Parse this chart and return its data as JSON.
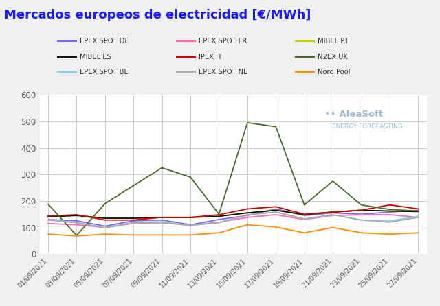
{
  "title": "Mercados europeos de electricidad [€/MWh]",
  "title_color": "#1a1aff",
  "background_color": "#f0f0f0",
  "plot_background": "#ffffff",
  "xlabels": [
    "01/09/2021",
    "03/09/2021",
    "05/09/2021",
    "07/09/2021",
    "09/09/2021",
    "11/09/2021",
    "13/09/2021",
    "15/09/2021",
    "17/09/2021",
    "19/09/2021",
    "21/09/2021",
    "23/09/2021",
    "25/09/2021",
    "27/09/2021"
  ],
  "ylim": [
    0,
    600
  ],
  "yticks": [
    0,
    100,
    200,
    300,
    400,
    500,
    600
  ],
  "series": [
    {
      "label": "EPEX SPOT DE",
      "color": "#7b68ee",
      "values": [
        130,
        125,
        105,
        125,
        128,
        110,
        130,
        145,
        170,
        145,
        155,
        150,
        158,
        165
      ]
    },
    {
      "label": "EPEX SPOT FR",
      "color": "#ff69b4",
      "values": [
        115,
        110,
        100,
        115,
        118,
        108,
        120,
        138,
        148,
        130,
        145,
        148,
        148,
        138
      ]
    },
    {
      "label": "MIBEL PT",
      "color": "#cccc00",
      "values": [
        140,
        145,
        135,
        135,
        138,
        138,
        142,
        155,
        165,
        148,
        158,
        165,
        162,
        160
      ]
    },
    {
      "label": "MIBEL ES",
      "color": "#111111",
      "values": [
        140,
        145,
        135,
        135,
        138,
        138,
        142,
        155,
        165,
        148,
        158,
        165,
        162,
        160
      ]
    },
    {
      "label": "IPEX IT",
      "color": "#cc0000",
      "values": [
        143,
        148,
        128,
        128,
        138,
        138,
        148,
        170,
        178,
        150,
        158,
        165,
        185,
        170
      ]
    },
    {
      "label": "N2EX UK",
      "color": "#4a6b2a",
      "values": [
        188,
        70,
        190,
        258,
        325,
        290,
        150,
        495,
        480,
        185,
        275,
        185,
        168,
        162
      ]
    },
    {
      "label": "EPEX SPOT BE",
      "color": "#87ceeb",
      "values": [
        130,
        118,
        100,
        118,
        122,
        108,
        118,
        148,
        158,
        132,
        148,
        128,
        125,
        142
      ]
    },
    {
      "label": "EPEX SPOT NL",
      "color": "#aaaaaa",
      "values": [
        128,
        118,
        98,
        118,
        118,
        108,
        118,
        148,
        158,
        132,
        148,
        128,
        120,
        138
      ]
    },
    {
      "label": "Nord Pool",
      "color": "#ff8c00",
      "values": [
        75,
        68,
        75,
        72,
        72,
        72,
        80,
        110,
        102,
        80,
        100,
        80,
        75,
        80
      ]
    }
  ],
  "legend_order": [
    0,
    1,
    2,
    3,
    4,
    5,
    6,
    7,
    8
  ],
  "watermark_text1": "•• AleaSoft",
  "watermark_text2": "ENERGY FORECASTING",
  "watermark_color": "#a0bcd0"
}
